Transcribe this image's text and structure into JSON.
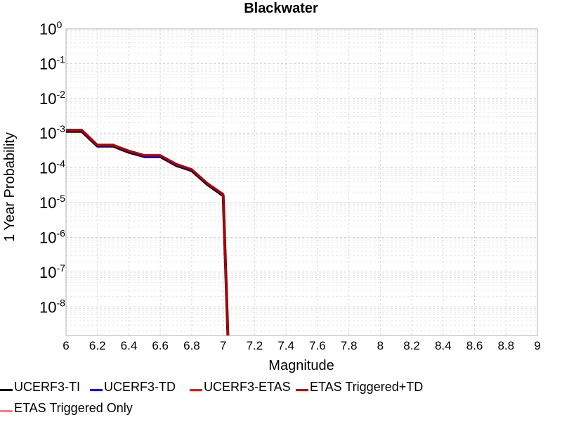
{
  "chart_data": {
    "type": "line",
    "title": "Blackwater",
    "xlabel": "Magnitude",
    "ylabel": "1 Year Probability",
    "xlim": [
      6,
      9
    ],
    "ylim": [
      1.5e-09,
      1
    ],
    "yscale": "log",
    "grid": true,
    "legend_position": "bottom",
    "x_ticks": [
      "6",
      "6.2",
      "6.4",
      "6.6",
      "6.8",
      "7",
      "7.2",
      "7.4",
      "7.6",
      "7.8",
      "8",
      "8.2",
      "8.4",
      "8.6",
      "8.8",
      "9"
    ],
    "y_ticks": [
      {
        "base": "10",
        "exp": "0"
      },
      {
        "base": "10",
        "exp": "-1"
      },
      {
        "base": "10",
        "exp": "-2"
      },
      {
        "base": "10",
        "exp": "-3"
      },
      {
        "base": "10",
        "exp": "-4"
      },
      {
        "base": "10",
        "exp": "-5"
      },
      {
        "base": "10",
        "exp": "-6"
      },
      {
        "base": "10",
        "exp": "-7"
      },
      {
        "base": "10",
        "exp": "-8"
      }
    ],
    "series": [
      {
        "name": "UCERF3-TI",
        "color": "#000000",
        "x": [
          6.0,
          6.1,
          6.2,
          6.3,
          6.4,
          6.5,
          6.6,
          6.7,
          6.8,
          6.9,
          7.0,
          7.03
        ],
        "y": [
          0.00112,
          0.00112,
          0.00042,
          0.00042,
          0.00028,
          0.00021,
          0.00021,
          0.000118,
          8.3e-05,
          3.3e-05,
          1.58e-05,
          1e-09
        ]
      },
      {
        "name": "UCERF3-TD",
        "color": "#0000ff",
        "x": [
          6.0,
          6.1,
          6.2,
          6.3,
          6.4,
          6.5,
          6.6,
          6.7,
          6.8,
          6.9,
          7.0,
          7.03
        ],
        "y": [
          0.00119,
          0.00119,
          0.00044,
          0.00044,
          0.0003,
          0.00022,
          0.00022,
          0.000125,
          8.8e-05,
          3.5e-05,
          1.68e-05,
          1e-09
        ]
      },
      {
        "name": "UCERF3-ETAS",
        "color": "#ff0000",
        "x": [
          6.0,
          6.1,
          6.2,
          6.3,
          6.4,
          6.5,
          6.6,
          6.7,
          6.8,
          6.9,
          7.0,
          7.03
        ],
        "y": [
          0.00122,
          0.00122,
          0.00045,
          0.00045,
          0.00031,
          0.00023,
          0.00023,
          0.000128,
          9e-05,
          3.6e-05,
          1.72e-05,
          1e-09
        ]
      },
      {
        "name": "ETAS Triggered+TD",
        "color": "#b00000",
        "x": [
          6.0,
          6.1,
          6.2,
          6.3,
          6.4,
          6.5,
          6.6,
          6.7,
          6.8,
          6.9,
          7.0,
          7.03
        ],
        "y": [
          0.00124,
          0.00124,
          0.00046,
          0.00046,
          0.00031,
          0.00023,
          0.00023,
          0.00013,
          9.1e-05,
          3.6e-05,
          1.75e-05,
          1e-09
        ]
      },
      {
        "name": "ETAS Triggered Only",
        "color": "#ff8080",
        "x": [],
        "y": []
      }
    ]
  }
}
